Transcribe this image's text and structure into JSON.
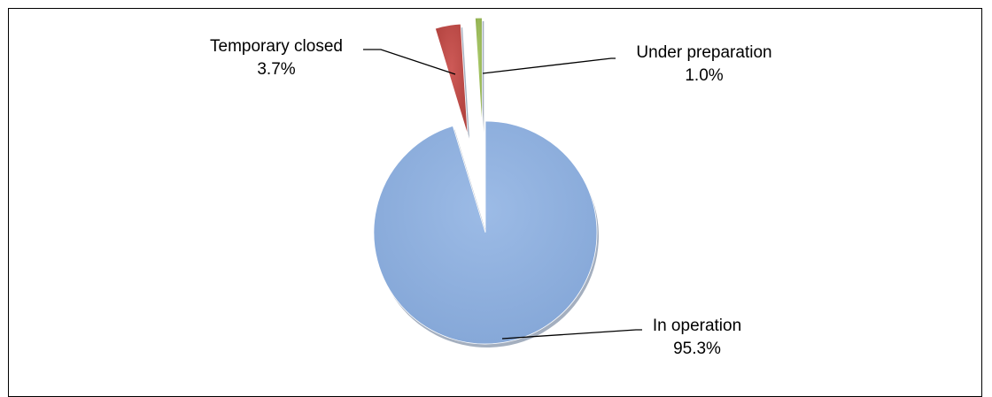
{
  "chart_data": {
    "type": "pie",
    "title": "",
    "categories": [
      "In operation",
      "Temporary closed",
      "Under preparation"
    ],
    "values": [
      95.3,
      3.7,
      1.0
    ],
    "value_labels": [
      "95.3%",
      "3.7%",
      "1.0%"
    ],
    "colors": [
      "#8EB0DE",
      "#C0504D",
      "#9BBB59"
    ],
    "exploded": [
      false,
      true,
      true
    ],
    "legend": "none",
    "data_labels": "outside with leader lines"
  }
}
